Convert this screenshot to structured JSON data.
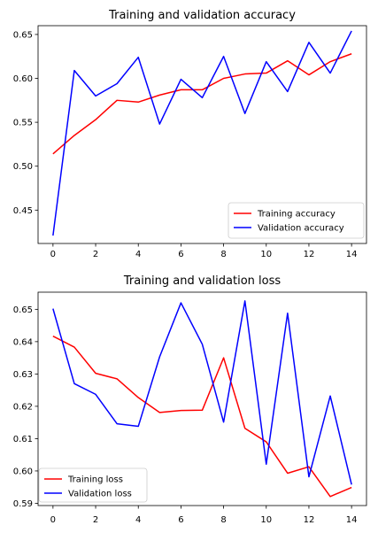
{
  "chart_data": [
    {
      "type": "line",
      "title": "Training and validation accuracy",
      "xlabel": "",
      "ylabel": "",
      "xlim": [
        -0.7,
        14.7
      ],
      "ylim": [
        0.412,
        0.66
      ],
      "xticks": [
        0,
        2,
        4,
        6,
        8,
        10,
        12,
        14
      ],
      "xtick_labels": [
        "0",
        "2",
        "4",
        "6",
        "8",
        "10",
        "12",
        "14"
      ],
      "yticks": [
        0.45,
        0.5,
        0.55,
        0.6,
        0.65
      ],
      "ytick_labels": [
        "0.45",
        "0.50",
        "0.55",
        "0.60",
        "0.65"
      ],
      "grid": false,
      "legend_position": "lower-right",
      "x": [
        0,
        1,
        2,
        3,
        4,
        5,
        6,
        7,
        8,
        9,
        10,
        11,
        12,
        13,
        14
      ],
      "series": [
        {
          "name": "Training accuracy",
          "color": "#ff0000",
          "values": [
            0.514,
            0.535,
            0.553,
            0.575,
            0.573,
            0.581,
            0.587,
            0.587,
            0.6,
            0.605,
            0.606,
            0.62,
            0.604,
            0.619,
            0.628
          ]
        },
        {
          "name": "Validation accuracy",
          "color": "#0000ff",
          "values": [
            0.421,
            0.609,
            0.58,
            0.594,
            0.624,
            0.548,
            0.599,
            0.578,
            0.625,
            0.56,
            0.619,
            0.585,
            0.641,
            0.606,
            0.654
          ]
        }
      ]
    },
    {
      "type": "line",
      "title": "Training and validation loss",
      "xlabel": "",
      "ylabel": "",
      "xlim": [
        -0.7,
        14.7
      ],
      "ylim": [
        0.5893,
        0.6553
      ],
      "xticks": [
        0,
        2,
        4,
        6,
        8,
        10,
        12,
        14
      ],
      "xtick_labels": [
        "0",
        "2",
        "4",
        "6",
        "8",
        "10",
        "12",
        "14"
      ],
      "yticks": [
        0.59,
        0.6,
        0.61,
        0.62,
        0.63,
        0.64,
        0.65
      ],
      "ytick_labels": [
        "0.59",
        "0.60",
        "0.61",
        "0.62",
        "0.63",
        "0.64",
        "0.65"
      ],
      "grid": false,
      "legend_position": "lower-left",
      "x": [
        0,
        1,
        2,
        3,
        4,
        5,
        6,
        7,
        8,
        9,
        10,
        11,
        12,
        13,
        14
      ],
      "series": [
        {
          "name": "Training loss",
          "color": "#ff0000",
          "values": [
            0.6417,
            0.6383,
            0.6302,
            0.6285,
            0.6227,
            0.6181,
            0.6187,
            0.6188,
            0.635,
            0.6132,
            0.609,
            0.5993,
            0.6013,
            0.5921,
            0.5949
          ]
        },
        {
          "name": "Validation loss",
          "color": "#0000ff",
          "values": [
            0.6502,
            0.627,
            0.6237,
            0.6146,
            0.6138,
            0.6353,
            0.652,
            0.6392,
            0.6151,
            0.6526,
            0.6021,
            0.6488,
            0.5982,
            0.6232,
            0.5958
          ]
        }
      ]
    }
  ]
}
